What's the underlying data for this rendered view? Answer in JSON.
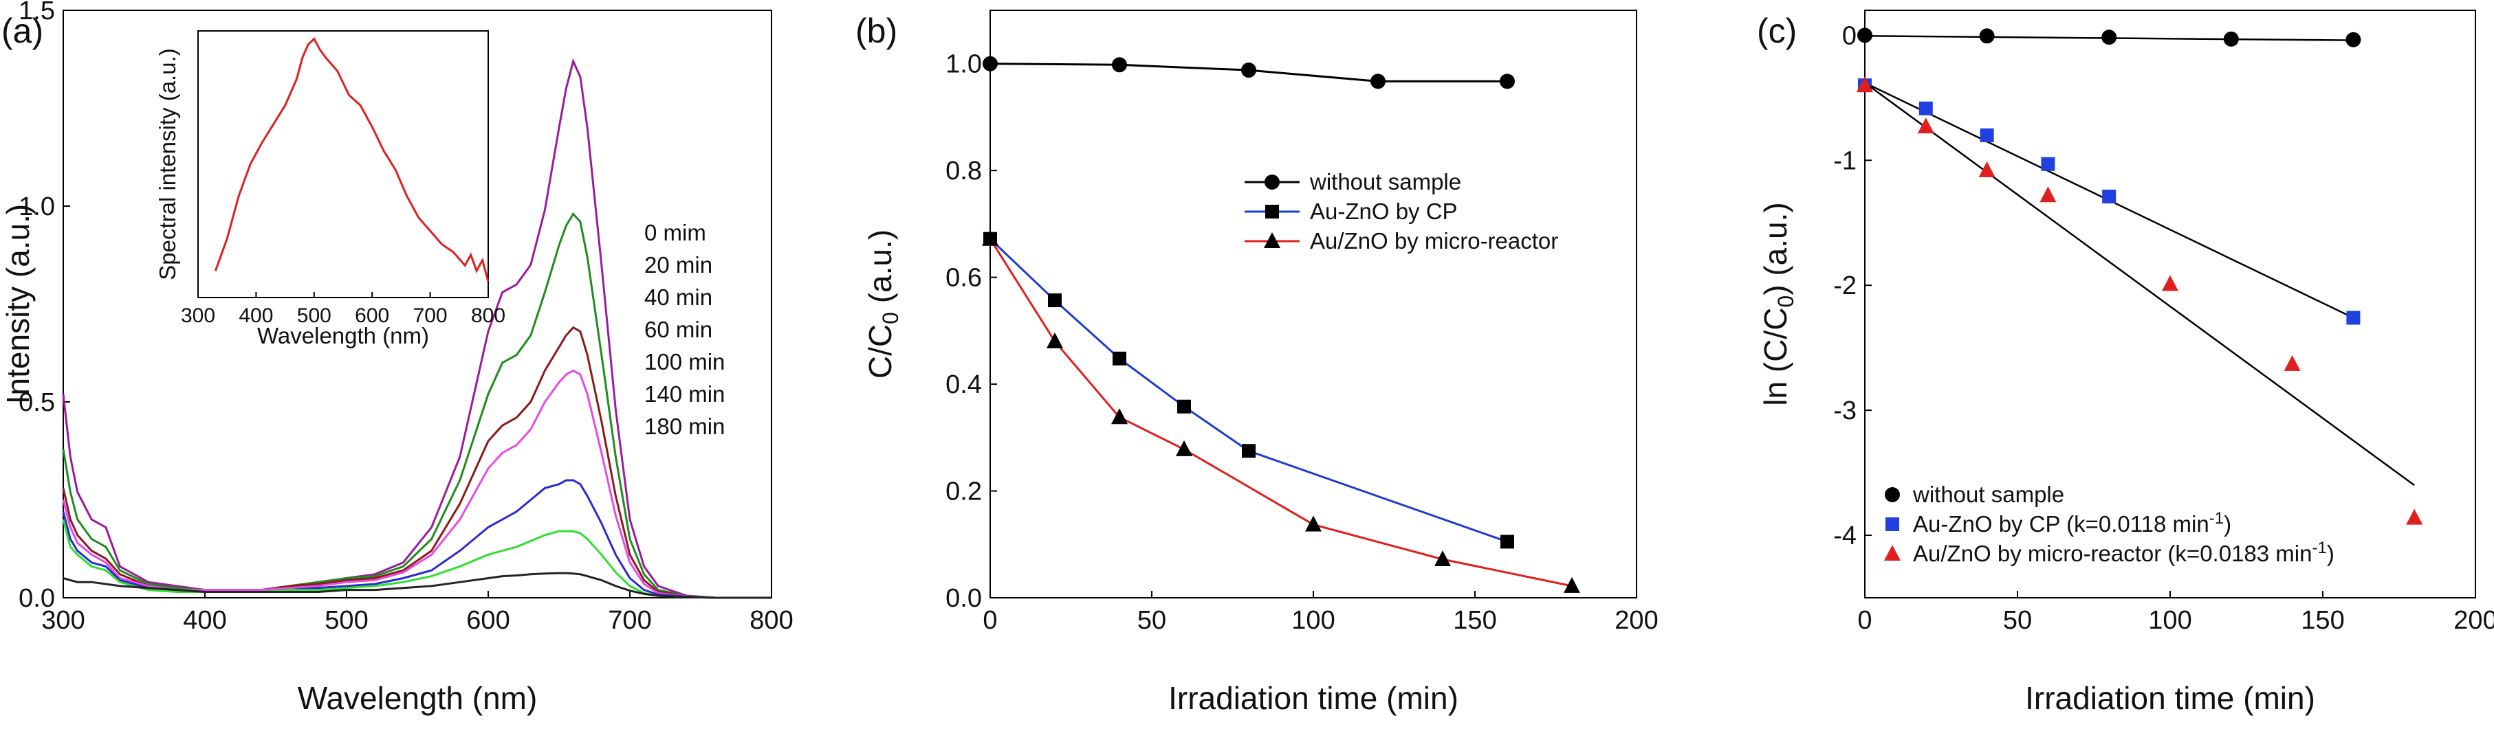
{
  "chart_data": [
    {
      "panel": "(a)",
      "type": "line",
      "xlabel": "Wavelength (nm)",
      "ylabel": "Intensity (a.u.)",
      "xlim": [
        300,
        800
      ],
      "ylim": [
        0,
        1.5
      ],
      "xticks": [
        300,
        400,
        500,
        600,
        700,
        800
      ],
      "xtick_labels": [
        "300",
        "400",
        "500",
        "600",
        "700",
        "800"
      ],
      "yticks": [
        0,
        0.5,
        1.0,
        1.5
      ],
      "ytick_labels": [
        "0.0",
        "0.5",
        "1.0",
        "1.5"
      ],
      "legend_placement": "right-middle",
      "x": [
        300,
        305,
        310,
        320,
        330,
        340,
        360,
        380,
        400,
        420,
        440,
        460,
        480,
        500,
        520,
        540,
        560,
        580,
        600,
        610,
        620,
        630,
        640,
        650,
        655,
        660,
        665,
        670,
        680,
        690,
        700,
        710,
        720,
        740,
        760,
        780,
        800
      ],
      "series": [
        {
          "name": "0 mim",
          "color": "#9B1B9B",
          "values": [
            0.52,
            0.36,
            0.27,
            0.2,
            0.18,
            0.08,
            0.04,
            0.03,
            0.02,
            0.02,
            0.02,
            0.03,
            0.04,
            0.05,
            0.06,
            0.09,
            0.18,
            0.36,
            0.68,
            0.78,
            0.8,
            0.85,
            0.99,
            1.2,
            1.3,
            1.37,
            1.33,
            1.2,
            0.85,
            0.48,
            0.2,
            0.08,
            0.03,
            0.005,
            0.0,
            0.0,
            0.0
          ]
        },
        {
          "name": "20 min",
          "color": "#1E8C1E",
          "values": [
            0.38,
            0.27,
            0.2,
            0.15,
            0.13,
            0.07,
            0.035,
            0.025,
            0.02,
            0.02,
            0.02,
            0.03,
            0.04,
            0.05,
            0.055,
            0.08,
            0.15,
            0.3,
            0.52,
            0.6,
            0.62,
            0.67,
            0.78,
            0.9,
            0.95,
            0.98,
            0.96,
            0.87,
            0.62,
            0.36,
            0.15,
            0.06,
            0.02,
            0.005,
            0.0,
            0.0,
            0.0
          ]
        },
        {
          "name": "40 min",
          "color": "#8B1A1A",
          "values": [
            0.28,
            0.2,
            0.16,
            0.12,
            0.1,
            0.06,
            0.03,
            0.02,
            0.02,
            0.02,
            0.02,
            0.03,
            0.035,
            0.045,
            0.05,
            0.07,
            0.12,
            0.24,
            0.4,
            0.44,
            0.46,
            0.5,
            0.58,
            0.64,
            0.67,
            0.69,
            0.68,
            0.62,
            0.45,
            0.26,
            0.11,
            0.045,
            0.015,
            0.005,
            0.0,
            0.0,
            0.0
          ]
        },
        {
          "name": "60 min",
          "color": "#E64BE6",
          "values": [
            0.25,
            0.18,
            0.14,
            0.11,
            0.09,
            0.05,
            0.03,
            0.02,
            0.02,
            0.02,
            0.02,
            0.025,
            0.03,
            0.04,
            0.045,
            0.065,
            0.11,
            0.2,
            0.33,
            0.37,
            0.39,
            0.43,
            0.5,
            0.55,
            0.57,
            0.58,
            0.57,
            0.52,
            0.37,
            0.21,
            0.09,
            0.035,
            0.012,
            0.004,
            0.0,
            0.0,
            0.0
          ]
        },
        {
          "name": "100 min",
          "color": "#2A2AD0",
          "values": [
            0.22,
            0.15,
            0.12,
            0.09,
            0.08,
            0.045,
            0.025,
            0.02,
            0.015,
            0.015,
            0.015,
            0.02,
            0.025,
            0.03,
            0.035,
            0.05,
            0.07,
            0.12,
            0.18,
            0.2,
            0.22,
            0.25,
            0.28,
            0.29,
            0.3,
            0.3,
            0.29,
            0.26,
            0.19,
            0.11,
            0.05,
            0.02,
            0.008,
            0.003,
            0.0,
            0.0,
            0.0
          ]
        },
        {
          "name": "140 min",
          "color": "#2EE02E",
          "values": [
            0.2,
            0.13,
            0.11,
            0.08,
            0.07,
            0.04,
            0.02,
            0.015,
            0.015,
            0.015,
            0.015,
            0.02,
            0.02,
            0.025,
            0.03,
            0.04,
            0.055,
            0.08,
            0.11,
            0.12,
            0.13,
            0.145,
            0.16,
            0.17,
            0.17,
            0.17,
            0.165,
            0.15,
            0.11,
            0.065,
            0.03,
            0.012,
            0.005,
            0.002,
            0.0,
            0.0,
            0.0
          ]
        },
        {
          "name": "180 min",
          "color": "#222222",
          "values": [
            0.05,
            0.045,
            0.04,
            0.04,
            0.035,
            0.03,
            0.025,
            0.02,
            0.015,
            0.015,
            0.015,
            0.015,
            0.015,
            0.02,
            0.02,
            0.025,
            0.03,
            0.04,
            0.05,
            0.055,
            0.057,
            0.06,
            0.062,
            0.063,
            0.063,
            0.062,
            0.06,
            0.055,
            0.045,
            0.03,
            0.018,
            0.01,
            0.005,
            0.002,
            0.0,
            0.0,
            0.0
          ]
        }
      ],
      "inset": {
        "type": "line",
        "xlabel": "Wavelength (nm)",
        "ylabel": "Spectral intensity (a.u.)",
        "xlim": [
          300,
          800
        ],
        "ylim": [
          0,
          1.0
        ],
        "xticks": [
          300,
          400,
          500,
          600,
          700,
          800
        ],
        "xtick_labels": [
          "300",
          "400",
          "500",
          "600",
          "700",
          "800"
        ],
        "color": "#E02020",
        "x": [
          330,
          350,
          370,
          390,
          410,
          430,
          450,
          470,
          480,
          490,
          500,
          510,
          520,
          540,
          560,
          580,
          600,
          620,
          640,
          660,
          680,
          700,
          720,
          740,
          760,
          770,
          780,
          790,
          800
        ],
        "values": [
          0.1,
          0.22,
          0.38,
          0.5,
          0.58,
          0.65,
          0.72,
          0.82,
          0.9,
          0.95,
          0.97,
          0.93,
          0.9,
          0.85,
          0.76,
          0.72,
          0.64,
          0.55,
          0.48,
          0.38,
          0.3,
          0.25,
          0.2,
          0.17,
          0.12,
          0.16,
          0.1,
          0.14,
          0.06
        ]
      }
    },
    {
      "panel": "(b)",
      "type": "line",
      "xlabel": "Irradiation time (min)",
      "ylabel": "C/C",
      "ylabel_sub": "0",
      "ylabel_suffix": " (a.u.)",
      "xlim": [
        0,
        200
      ],
      "ylim": [
        0,
        1.1
      ],
      "xticks": [
        0,
        50,
        100,
        150,
        200
      ],
      "xtick_labels": [
        "0",
        "50",
        "100",
        "150",
        "200"
      ],
      "yticks": [
        0,
        0.2,
        0.4,
        0.6,
        0.8,
        1.0
      ],
      "ytick_labels": [
        "0.0",
        "0.2",
        "0.4",
        "0.6",
        "0.8",
        "1.0"
      ],
      "legend_placement": "top-right",
      "series": [
        {
          "name": "without sample",
          "color": "#000000",
          "marker": "circle",
          "x": [
            0,
            40,
            80,
            120,
            160
          ],
          "values": [
            1.0,
            0.998,
            0.988,
            0.967,
            0.967
          ]
        },
        {
          "name": "Au-ZnO by CP",
          "color": "#1F3BCF",
          "marker": "square",
          "x": [
            0,
            20,
            40,
            60,
            80,
            160
          ],
          "values": [
            0.672,
            0.557,
            0.448,
            0.358,
            0.275,
            0.105
          ]
        },
        {
          "name": "Au/ZnO by micro-reactor",
          "color": "#E02020",
          "marker": "triangle",
          "x": [
            0,
            20,
            40,
            60,
            100,
            140,
            180
          ],
          "values": [
            0.672,
            0.48,
            0.338,
            0.278,
            0.137,
            0.072,
            0.022
          ]
        }
      ]
    },
    {
      "panel": "(c)",
      "type": "scatter",
      "xlabel": "Irradiation time (min)",
      "ylabel": "ln (C/C",
      "ylabel_sub": "0",
      "ylabel_suffix": ") (a.u.)",
      "xlim": [
        0,
        200
      ],
      "ylim": [
        -4.5,
        0.2
      ],
      "xticks": [
        0,
        50,
        100,
        150,
        200
      ],
      "xtick_labels": [
        "0",
        "50",
        "100",
        "150",
        "200"
      ],
      "yticks": [
        0,
        -1,
        -2,
        -3,
        -4
      ],
      "ytick_labels": [
        "0",
        "-1",
        "-2",
        "-3",
        "-4"
      ],
      "legend_placement": "bottom-left",
      "series": [
        {
          "name": "without sample",
          "label_main": "without sample",
          "label_sup": "",
          "label_end": "",
          "color": "#000000",
          "marker": "circle",
          "x": [
            0,
            40,
            80,
            120,
            160
          ],
          "values": [
            0.0,
            -0.005,
            -0.015,
            -0.03,
            -0.035
          ],
          "fit": [
            [
              0,
              -0.005
            ],
            [
              160,
              -0.04
            ]
          ]
        },
        {
          "name": "Au-ZnO by CP (k=0.0118 min-1)",
          "label_main": "Au-ZnO by CP (k=0.0118 min",
          "label_sup": "-1",
          "label_end": ")",
          "color": "#2040E0",
          "marker": "square",
          "x": [
            0,
            20,
            40,
            60,
            80,
            160
          ],
          "values": [
            -0.4,
            -0.585,
            -0.8,
            -1.03,
            -1.29,
            -2.26
          ],
          "fit": [
            [
              0,
              -0.38
            ],
            [
              160,
              -2.26
            ]
          ]
        },
        {
          "name": "Au/ZnO by micro-reactor (k=0.0183 min-1)",
          "label_main": "Au/ZnO by micro-reactor (k=0.0183 min",
          "label_sup": "-1",
          "label_end": ")",
          "color": "#E02020",
          "marker": "triangle",
          "x": [
            0,
            20,
            40,
            60,
            100,
            140,
            180
          ],
          "values": [
            -0.4,
            -0.73,
            -1.08,
            -1.28,
            -1.99,
            -2.63,
            -3.86
          ],
          "fit": [
            [
              0,
              -0.38
            ],
            [
              180,
              -3.6
            ]
          ]
        }
      ]
    }
  ]
}
